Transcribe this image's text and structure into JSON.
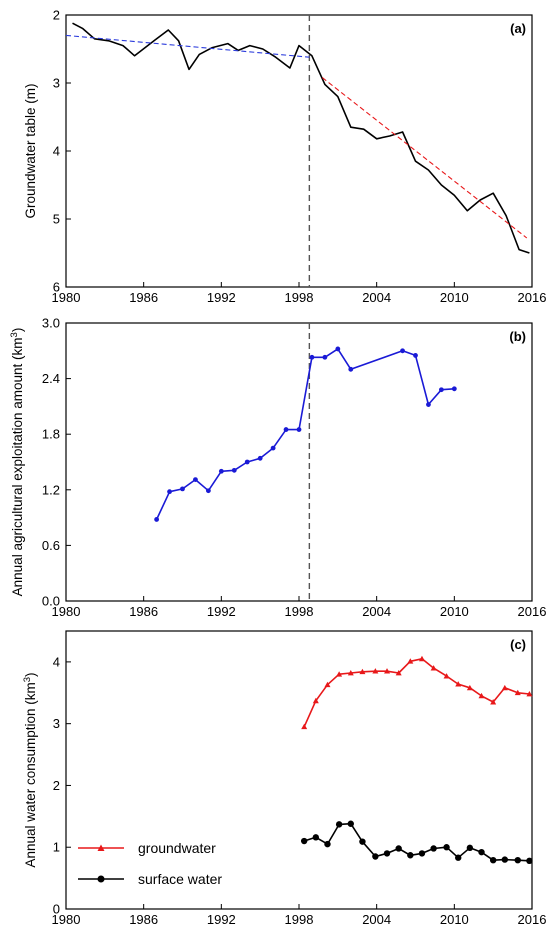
{
  "chart_data": [
    {
      "panel": "a",
      "type": "line",
      "panel_label": "(a)",
      "ylabel": "Groundwater table (m)",
      "xlim": [
        1980,
        2016
      ],
      "ylim": [
        2,
        6
      ],
      "y_inverted": true,
      "x_ticks": [
        1980,
        1986,
        1992,
        1998,
        2004,
        2010,
        2016
      ],
      "y_ticks": [
        2,
        3,
        4,
        5,
        6
      ],
      "series": [
        {
          "color": "#000000",
          "style": "solid",
          "x": [
            1980.5,
            1981.3,
            1982.2,
            1983.3,
            1984.4,
            1985.3,
            1986.8,
            1987.9,
            1988.7,
            1989.5,
            1990.3,
            1991.3,
            1992.5,
            1993.3,
            1994.2,
            1995.2,
            1996.2,
            1997.3,
            1998.0,
            1999.0,
            2000.0,
            2001.0,
            2002.0,
            2003.0,
            2004.0,
            2005.0,
            2006.0,
            2007.0,
            2008.0,
            2009.0,
            2010.0,
            2011.0,
            2012.0,
            2013.0,
            2014.0,
            2015.0,
            2015.8
          ],
          "y": [
            2.12,
            2.2,
            2.35,
            2.38,
            2.45,
            2.6,
            2.38,
            2.22,
            2.38,
            2.8,
            2.58,
            2.48,
            2.42,
            2.52,
            2.45,
            2.5,
            2.62,
            2.78,
            2.45,
            2.6,
            3.02,
            3.2,
            3.65,
            3.68,
            3.82,
            3.78,
            3.72,
            4.15,
            4.28,
            4.5,
            4.65,
            4.88,
            4.72,
            4.62,
            4.95,
            5.45,
            5.5
          ]
        },
        {
          "color": "#2b3bdc",
          "style": "dashed",
          "x": [
            1980.0,
            1998.8
          ],
          "y": [
            2.3,
            2.62
          ]
        },
        {
          "color": "#e8181a",
          "style": "dashed",
          "x": [
            1999.8,
            2015.6
          ],
          "y": [
            2.92,
            5.28
          ]
        }
      ],
      "vline_x": 1998.8
    },
    {
      "panel": "b",
      "type": "line",
      "panel_label": "(b)",
      "ylabel": "Annual agricultural exploitation amount (km",
      "ylabel_superscript": "3",
      "ylabel_close": ")",
      "xlim": [
        1980,
        2016
      ],
      "ylim": [
        0,
        3.0
      ],
      "x_ticks": [
        1980,
        1986,
        1992,
        1998,
        2004,
        2010,
        2016
      ],
      "y_ticks": [
        0.0,
        0.6,
        1.2,
        1.8,
        2.4,
        3.0
      ],
      "y_tick_labels": [
        "0.0",
        "0.6",
        "1.2",
        "1.8",
        "2.4",
        "3.0"
      ],
      "series": [
        {
          "color": "#1a1ad6",
          "marker": "circle",
          "x": [
            1987.0,
            1988.0,
            1989.0,
            1990.0,
            1991.0,
            1992.0,
            1993.0,
            1994.0,
            1995.0,
            1996.0,
            1997.0,
            1998.0,
            1999.0,
            2000.0,
            2001.0,
            2002.0,
            2006.0,
            2007.0,
            2008.0,
            2009.0,
            2010.0
          ],
          "y": [
            0.88,
            1.18,
            1.21,
            1.31,
            1.19,
            1.4,
            1.41,
            1.5,
            1.54,
            1.65,
            1.85,
            1.85,
            2.63,
            2.63,
            2.72,
            2.5,
            2.7,
            2.65,
            2.12,
            2.28,
            2.29
          ]
        }
      ],
      "vline_x": 1998.8
    },
    {
      "panel": "c",
      "type": "line",
      "panel_label": "(c)",
      "ylabel": "Annual water consumption (km",
      "ylabel_superscript": "3",
      "ylabel_close": ")",
      "xlim": [
        1980,
        2016
      ],
      "ylim": [
        0,
        4.5
      ],
      "x_ticks": [
        1980,
        1986,
        1992,
        1998,
        2004,
        2010,
        2016
      ],
      "y_ticks": [
        0,
        1,
        2,
        3,
        4
      ],
      "legend_position": "bottom-left",
      "series": [
        {
          "name": "groundwater",
          "color": "#e8181a",
          "marker": "triangle",
          "x": [
            1998.4,
            1999.3,
            2000.2,
            2001.1,
            2002.0,
            2002.9,
            2003.9,
            2004.8,
            2005.7,
            2006.6,
            2007.5,
            2008.4,
            2009.4,
            2010.3,
            2011.2,
            2012.1,
            2013.0,
            2013.9,
            2014.9,
            2015.8
          ],
          "y": [
            2.95,
            3.37,
            3.63,
            3.8,
            3.82,
            3.84,
            3.85,
            3.85,
            3.82,
            4.01,
            4.05,
            3.9,
            3.77,
            3.64,
            3.58,
            3.45,
            3.35,
            3.58,
            3.5,
            3.48
          ]
        },
        {
          "name": "surface water",
          "color": "#000000",
          "marker": "circle",
          "x": [
            1998.4,
            1999.3,
            2000.2,
            2001.1,
            2002.0,
            2002.9,
            2003.9,
            2004.8,
            2005.7,
            2006.6,
            2007.5,
            2008.4,
            2009.4,
            2010.3,
            2011.2,
            2012.1,
            2013.0,
            2013.9,
            2014.9,
            2015.8
          ],
          "y": [
            1.1,
            1.16,
            1.05,
            1.37,
            1.38,
            1.09,
            0.85,
            0.9,
            0.98,
            0.87,
            0.9,
            0.98,
            1.0,
            0.83,
            0.99,
            0.92,
            0.79,
            0.8,
            0.79,
            0.78
          ]
        }
      ]
    }
  ]
}
